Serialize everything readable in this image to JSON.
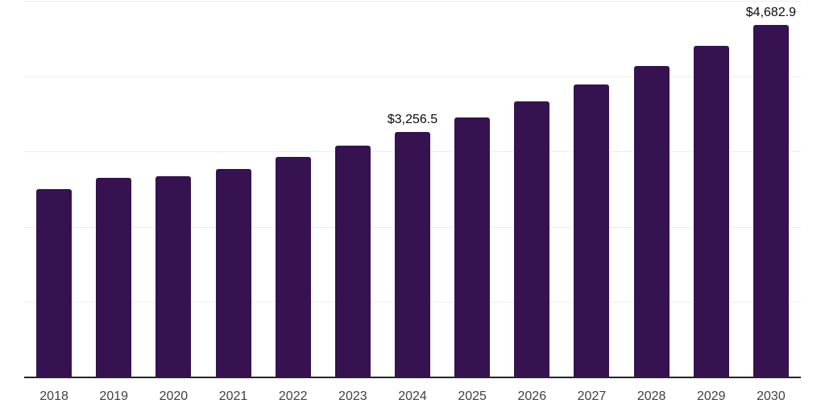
{
  "chart_data": {
    "type": "bar",
    "title": "",
    "xlabel": "",
    "ylabel": "",
    "categories": [
      "2018",
      "2019",
      "2020",
      "2021",
      "2022",
      "2023",
      "2024",
      "2025",
      "2026",
      "2027",
      "2028",
      "2029",
      "2030"
    ],
    "values": [
      2500,
      2650,
      2670,
      2765,
      2925,
      3080,
      3256.5,
      3450,
      3665,
      3885,
      4135,
      4400,
      4682.9
    ],
    "data_labels": {
      "2024": "$3,256.5",
      "2030": "$4,682.9"
    },
    "ylim": [
      0,
      5000
    ],
    "gridline_step": 1000,
    "grid": "horizontal",
    "legend_position": "none",
    "colors": {
      "bar": "#361250",
      "gridline": "#ededed",
      "axis": "#262626",
      "tick_label": "#404040",
      "data_label": "#0a0a0a",
      "background": "#ffffff"
    }
  }
}
